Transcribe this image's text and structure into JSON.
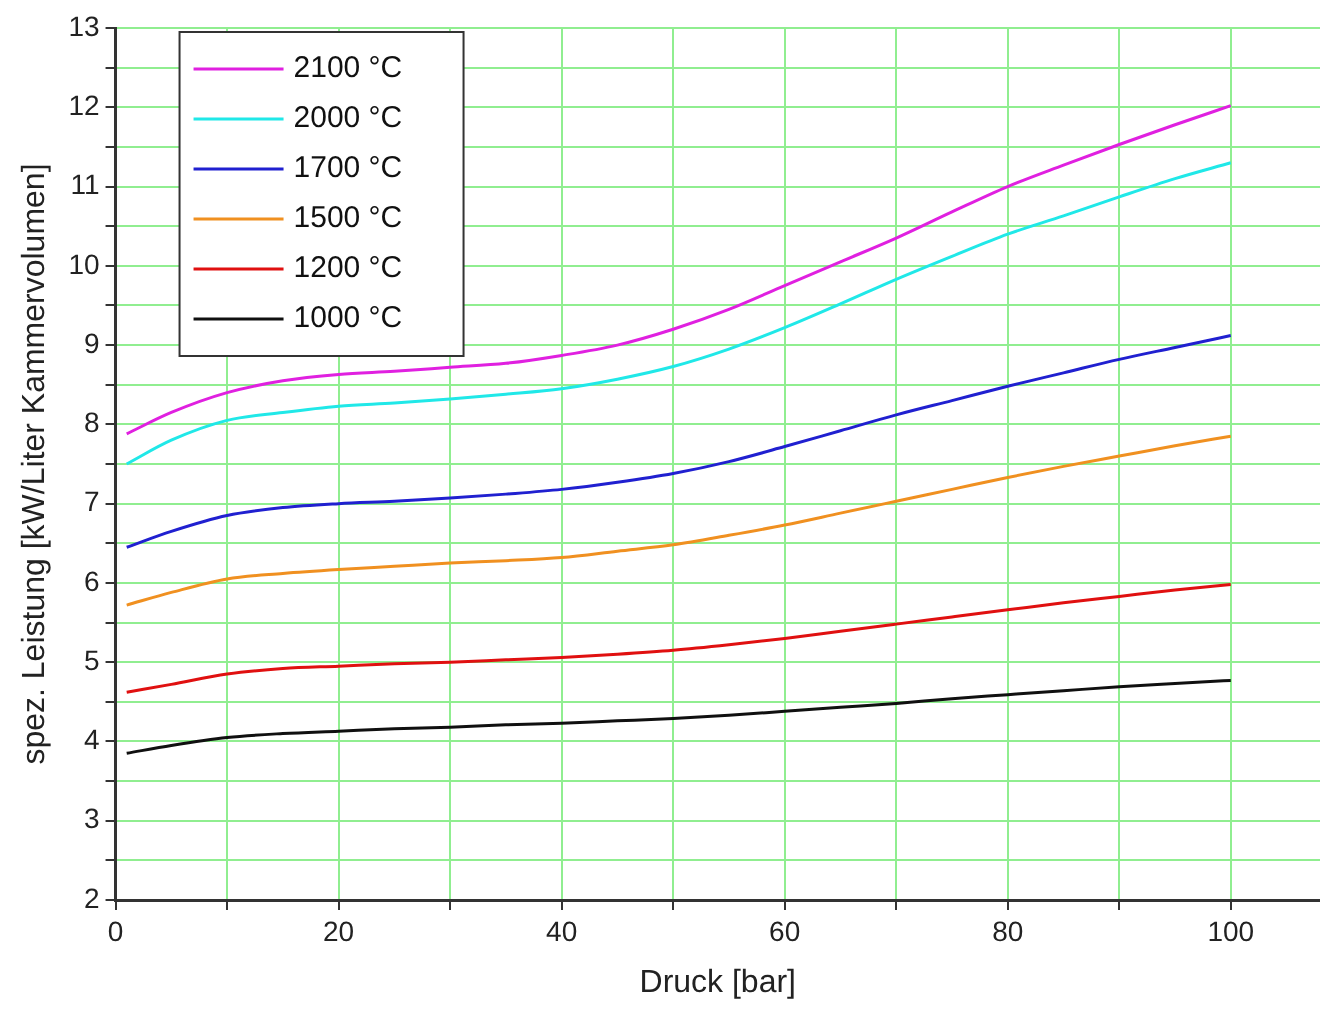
{
  "chart_data": {
    "type": "line",
    "xlabel": "Druck [bar]",
    "ylabel": "spez. Leistung [kW/Liter Kammervolumen]",
    "x": [
      1,
      5,
      10,
      15,
      20,
      25,
      30,
      35,
      40,
      45,
      50,
      55,
      60,
      65,
      70,
      75,
      80,
      85,
      90,
      95,
      100
    ],
    "series": [
      {
        "name": "2100 °C",
        "color": "#e020e0",
        "values": [
          7.88,
          8.15,
          8.4,
          8.55,
          8.63,
          8.67,
          8.72,
          8.77,
          8.87,
          9.0,
          9.2,
          9.45,
          9.75,
          10.05,
          10.35,
          10.68,
          11.0,
          11.27,
          11.53,
          11.78,
          12.02
        ]
      },
      {
        "name": "2000 °C",
        "color": "#20e8e8",
        "values": [
          7.5,
          7.8,
          8.05,
          8.15,
          8.23,
          8.27,
          8.32,
          8.38,
          8.45,
          8.57,
          8.73,
          8.95,
          9.22,
          9.52,
          9.83,
          10.12,
          10.4,
          10.63,
          10.87,
          11.1,
          11.3
        ]
      },
      {
        "name": "1700 °C",
        "color": "#2020d0",
        "values": [
          6.45,
          6.65,
          6.85,
          6.95,
          7.0,
          7.03,
          7.07,
          7.12,
          7.18,
          7.27,
          7.38,
          7.53,
          7.72,
          7.92,
          8.12,
          8.3,
          8.48,
          8.65,
          8.82,
          8.97,
          9.12
        ]
      },
      {
        "name": "1500 °C",
        "color": "#f09020",
        "values": [
          5.72,
          5.88,
          6.05,
          6.12,
          6.17,
          6.21,
          6.25,
          6.28,
          6.32,
          6.4,
          6.48,
          6.6,
          6.73,
          6.88,
          7.03,
          7.18,
          7.33,
          7.47,
          7.6,
          7.73,
          7.85
        ]
      },
      {
        "name": "1200 °C",
        "color": "#e01010",
        "values": [
          4.62,
          4.72,
          4.85,
          4.92,
          4.95,
          4.98,
          5.0,
          5.03,
          5.06,
          5.1,
          5.15,
          5.22,
          5.3,
          5.39,
          5.48,
          5.57,
          5.66,
          5.75,
          5.83,
          5.91,
          5.98
        ]
      },
      {
        "name": "1000 °C",
        "color": "#101010",
        "values": [
          3.85,
          3.95,
          4.05,
          4.1,
          4.13,
          4.16,
          4.18,
          4.21,
          4.23,
          4.26,
          4.29,
          4.33,
          4.38,
          4.43,
          4.48,
          4.54,
          4.59,
          4.64,
          4.69,
          4.73,
          4.77
        ]
      }
    ],
    "xlim": [
      0,
      108
    ],
    "xticks": [
      0,
      {
        "value": 10,
        "label": null
      },
      20,
      {
        "value": 30,
        "label": null
      },
      40,
      {
        "value": 50,
        "label": null
      },
      60,
      {
        "value": 70,
        "label": null
      },
      80,
      {
        "value": 90,
        "label": null
      },
      100
    ],
    "ylim": [
      2,
      13
    ],
    "yticks": [
      2,
      {
        "value": 2.5,
        "label": null
      },
      3,
      {
        "value": 3.5,
        "label": null
      },
      4,
      {
        "value": 4.5,
        "label": null
      },
      5,
      {
        "value": 5.5,
        "label": null
      },
      6,
      {
        "value": 6.5,
        "label": null
      },
      7,
      {
        "value": 7.5,
        "label": null
      },
      8,
      {
        "value": 8.5,
        "label": null
      },
      9,
      {
        "value": 9.5,
        "label": null
      },
      10,
      {
        "value": 10.5,
        "label": null
      },
      11,
      {
        "value": 11.5,
        "label": null
      },
      12,
      {
        "value": 12.5,
        "label": null
      },
      13
    ],
    "grid": true,
    "legend": "top left",
    "marker": "none",
    "line_style": "solid"
  }
}
